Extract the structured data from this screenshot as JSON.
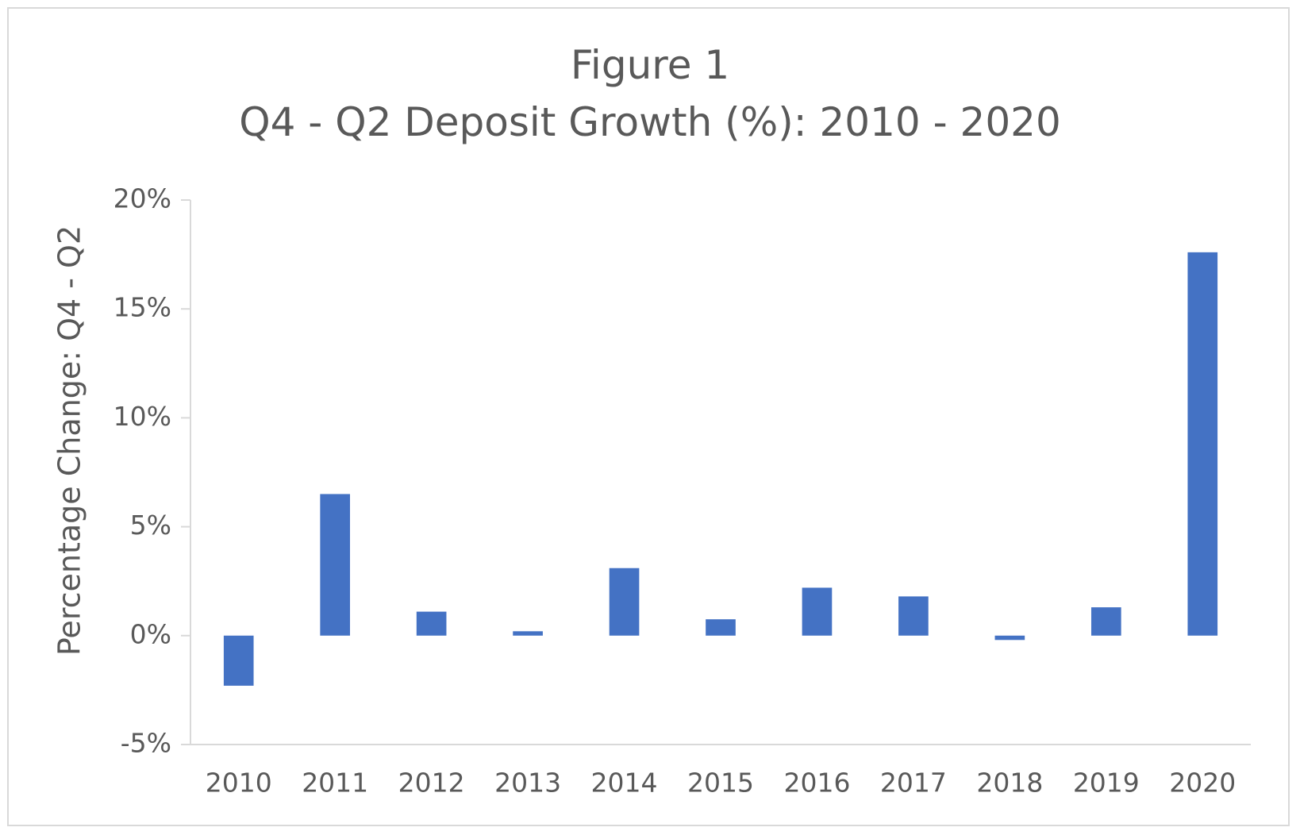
{
  "chart_data": {
    "type": "bar",
    "title_line_1": "Figure 1",
    "title_line_2": "Q4 - Q2 Deposit Growth (%): 2010 - 2020",
    "xlabel": "",
    "ylabel": "Percentage Change: Q4 - Q2",
    "categories": [
      "2010",
      "2011",
      "2012",
      "2013",
      "2014",
      "2015",
      "2016",
      "2017",
      "2018",
      "2019",
      "2020"
    ],
    "series": [
      {
        "values": [
          -2.3,
          6.5,
          1.1,
          0.2,
          3.1,
          0.75,
          2.2,
          1.8,
          -0.2,
          1.3,
          17.6
        ],
        "color": "#4472c4"
      }
    ],
    "ylim": [
      -5,
      20
    ],
    "yticks": [
      -5,
      0,
      5,
      10,
      15,
      20
    ],
    "ytick_labels": [
      "-5%",
      "0%",
      "5%",
      "10%",
      "15%",
      "20%"
    ],
    "grid": false,
    "legend": "none",
    "axis_color": "#d9d9d9",
    "text_color": "#595959"
  }
}
